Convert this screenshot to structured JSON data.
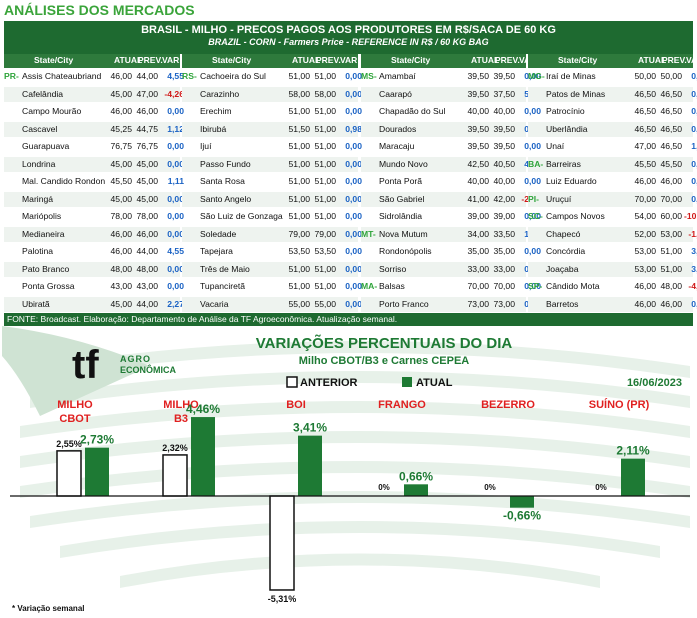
{
  "title": "ANÁLISES DOS MERCADOS",
  "table": {
    "title": "BRASIL - MILHO - PRECOS PAGOS AOS PRODUTORES EM R$/SACA DE 60 KG",
    "subtitle": "BRAZIL - CORN - Farmers Price - REFERENCE IN R$ / 60 KG BAG",
    "col_headers": [
      "State/City",
      "ATUAL",
      "PREV.",
      "VAR %"
    ],
    "blocks": [
      {
        "rows": [
          [
            "PR-",
            "Assis Chateaubriand",
            "46,00",
            "44,00",
            "4,55"
          ],
          [
            "",
            "Cafelândia",
            "45,00",
            "47,00",
            "-4,26"
          ],
          [
            "",
            "Campo Mourão",
            "46,00",
            "46,00",
            "0,00"
          ],
          [
            "",
            "Cascavel",
            "45,25",
            "44,75",
            "1,12"
          ],
          [
            "",
            "Guarapuava",
            "76,75",
            "76,75",
            "0,00"
          ],
          [
            "",
            "Londrina",
            "45,00",
            "45,00",
            "0,00"
          ],
          [
            "",
            "Mal. Candido Rondon",
            "45,50",
            "45,00",
            "1,11"
          ],
          [
            "",
            "Maringá",
            "45,00",
            "45,00",
            "0,00"
          ],
          [
            "",
            "Mariópolis",
            "78,00",
            "78,00",
            "0,00"
          ],
          [
            "",
            "Medianeira",
            "46,00",
            "46,00",
            "0,00"
          ],
          [
            "",
            "Palotina",
            "46,00",
            "44,00",
            "4,55"
          ],
          [
            "",
            "Pato Branco",
            "48,00",
            "48,00",
            "0,00"
          ],
          [
            "",
            "Ponta Grossa",
            "43,00",
            "43,00",
            "0,00"
          ],
          [
            "",
            "Ubiratã",
            "45,00",
            "44,00",
            "2,27"
          ]
        ]
      },
      {
        "rows": [
          [
            "RS-",
            "Cachoeira do Sul",
            "51,00",
            "51,00",
            "0,00"
          ],
          [
            "",
            "Carazinho",
            "58,00",
            "58,00",
            "0,00"
          ],
          [
            "",
            "Erechim",
            "51,00",
            "51,00",
            "0,00"
          ],
          [
            "",
            "Ibirubá",
            "51,50",
            "51,00",
            "0,98"
          ],
          [
            "",
            "Ijuí",
            "51,00",
            "51,00",
            "0,00"
          ],
          [
            "",
            "Passo Fundo",
            "51,00",
            "51,00",
            "0,00"
          ],
          [
            "",
            "Santa Rosa",
            "51,00",
            "51,00",
            "0,00"
          ],
          [
            "",
            "Santo Angelo",
            "51,00",
            "51,00",
            "0,00"
          ],
          [
            "",
            "São Luiz de Gonzaga",
            "51,00",
            "51,00",
            "0,00"
          ],
          [
            "",
            "Soledade",
            "79,00",
            "79,00",
            "0,00"
          ],
          [
            "",
            "Tapejara",
            "53,50",
            "53,50",
            "0,00"
          ],
          [
            "",
            "Três de Maio",
            "51,00",
            "51,00",
            "0,00"
          ],
          [
            "",
            "Tupanciretã",
            "51,00",
            "51,00",
            "0,00"
          ],
          [
            "",
            "Vacaria",
            "55,00",
            "55,00",
            "0,00"
          ]
        ]
      },
      {
        "rows": [
          [
            "MS-",
            "Amambaí",
            "39,50",
            "39,50",
            "0,00"
          ],
          [
            "",
            "Caarapó",
            "39,50",
            "37,50",
            "5,33"
          ],
          [
            "",
            "Chapadão do Sul",
            "40,00",
            "40,00",
            "0,00"
          ],
          [
            "",
            "Dourados",
            "39,50",
            "39,50",
            "0,00"
          ],
          [
            "",
            "Maracaju",
            "39,50",
            "39,50",
            "0,00"
          ],
          [
            "",
            "Mundo Novo",
            "42,50",
            "40,50",
            "4,94"
          ],
          [
            "",
            "Ponta Porã",
            "40,00",
            "40,00",
            "0,00"
          ],
          [
            "",
            "São Gabriel",
            "41,00",
            "42,00",
            "-2,38"
          ],
          [
            "",
            "Sidrolândia",
            "39,00",
            "39,00",
            "0,00"
          ],
          [
            "MT-",
            "Nova Mutum",
            "34,00",
            "33,50",
            "1,49"
          ],
          [
            "",
            "Rondonópolis",
            "35,00",
            "35,00",
            "0,00"
          ],
          [
            "",
            "Sorriso",
            "33,00",
            "33,00",
            "0,00"
          ],
          [
            "MA-",
            "Balsas",
            "70,00",
            "70,00",
            "0,00"
          ],
          [
            "",
            "Porto Franco",
            "73,00",
            "73,00",
            "0,00"
          ]
        ]
      },
      {
        "rows": [
          [
            "MG-",
            "Iraí de Minas",
            "50,00",
            "50,00",
            "0,00"
          ],
          [
            "",
            "Patos de Minas",
            "46,50",
            "46,50",
            "0,00"
          ],
          [
            "",
            "Patrocínio",
            "46,50",
            "46,50",
            "0,00"
          ],
          [
            "",
            "Uberlândia",
            "46,50",
            "46,50",
            "0,00"
          ],
          [
            "",
            "Unaí",
            "47,00",
            "46,50",
            "1,08"
          ],
          [
            "BA-",
            "Barreiras",
            "45,50",
            "45,50",
            "0,00"
          ],
          [
            "",
            "Luiz Eduardo",
            "46,00",
            "46,00",
            "0,00"
          ],
          [
            "PI-",
            "Uruçuí",
            "70,00",
            "70,00",
            "0,00"
          ],
          [
            "SC-",
            "Campos Novos",
            "54,00",
            "60,00",
            "-10,00"
          ],
          [
            "",
            "Chapecó",
            "52,00",
            "53,00",
            "-1,89"
          ],
          [
            "",
            "Concórdia",
            "53,00",
            "51,00",
            "3,92"
          ],
          [
            "",
            "Joaçaba",
            "53,00",
            "51,00",
            "3,92"
          ],
          [
            "SP-",
            "Cândido Mota",
            "46,00",
            "48,00",
            "-4,17"
          ],
          [
            "",
            "Barretos",
            "46,00",
            "46,00",
            "0,00"
          ]
        ]
      }
    ],
    "source": "FONTE: Broadcast. Elaboração: Departamento de Análise da TF Agroeconômica. Atualização semanal."
  },
  "logo": {
    "mark": "tf",
    "line1": "AGRO",
    "line2": "ECONÔMICA"
  },
  "chart_data": {
    "type": "bar",
    "title": "VARIAÇÕES PERCENTUAIS DO DIA",
    "subtitle": "Milho CBOT/B3 e Carnes CEPEA",
    "date": "16/06/2023",
    "categories": [
      [
        "MILHO",
        "CBOT"
      ],
      [
        "MILHO",
        "B3"
      ],
      [
        "BOI"
      ],
      [
        "FRANGO"
      ],
      [
        "BEZERRO"
      ],
      [
        "SUÍNO (PR)"
      ]
    ],
    "series": [
      {
        "name": "ANTERIOR",
        "values": [
          2.55,
          2.32,
          -5.31,
          0,
          0,
          0
        ],
        "labels": [
          "2,55%",
          "2,32%",
          "-5,31%",
          "0%",
          "0%",
          "0%"
        ]
      },
      {
        "name": "ATUAL",
        "values": [
          2.73,
          4.46,
          3.41,
          0.66,
          -0.66,
          2.11
        ],
        "labels": [
          "2,73%",
          "4,46%",
          "3,41%",
          "0,66%",
          "-0,66%",
          "2,11%"
        ]
      }
    ],
    "colors": {
      "anterior": "#ffffff",
      "atual": "#1e7a34",
      "category": "#e02020",
      "accent": "#1e7a34"
    },
    "footnote": "* Variação semanal"
  }
}
